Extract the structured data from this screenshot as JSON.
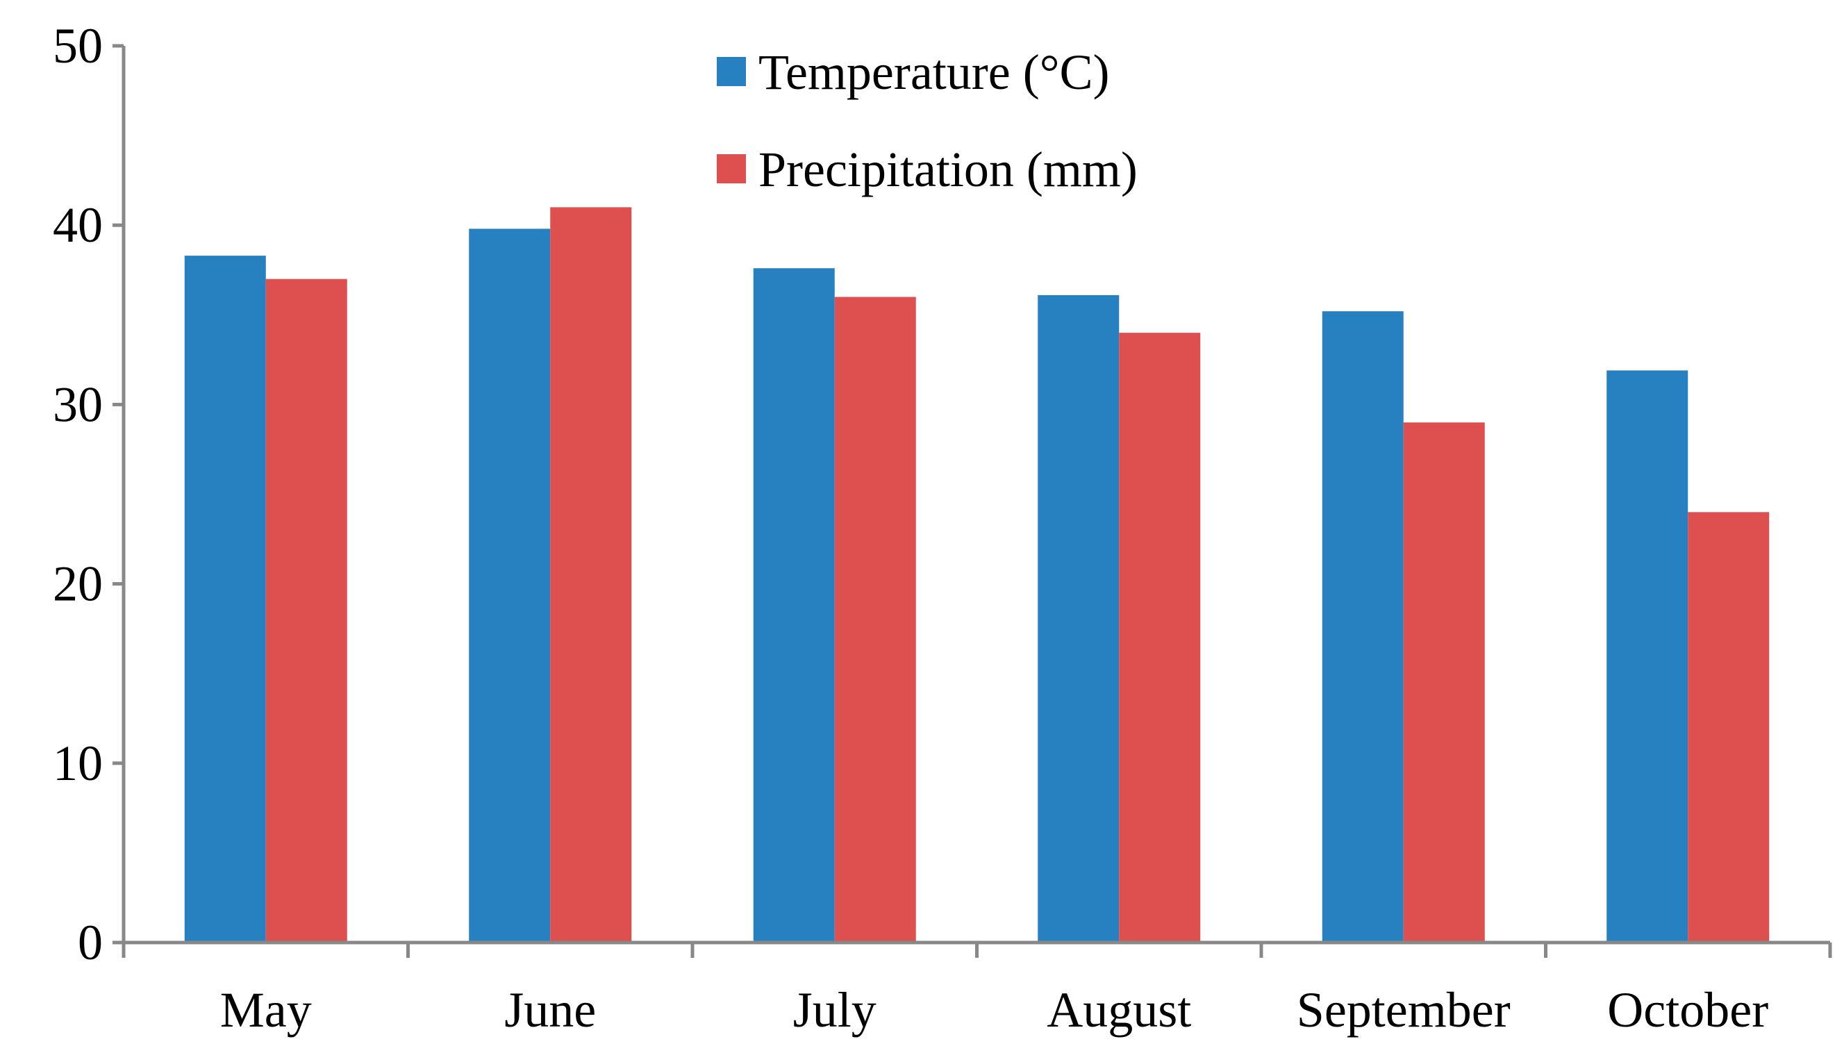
{
  "chart_data": {
    "type": "bar",
    "title": "",
    "xlabel": "",
    "ylabel": "",
    "ylim": [
      0,
      50
    ],
    "yticks": [
      0,
      10,
      20,
      30,
      40,
      50
    ],
    "yticks_text": [
      "0",
      "10",
      "20",
      "30",
      "40",
      "50"
    ],
    "grid": false,
    "legend_position": "top-center",
    "categories": [
      "May",
      "June",
      "July",
      "August",
      "September",
      "October"
    ],
    "series": [
      {
        "name": "Temperature (°C)",
        "color": "#2781C1",
        "values": [
          38.3,
          39.8,
          37.6,
          36.1,
          35.2,
          31.9
        ]
      },
      {
        "name": "Precipitation (mm)",
        "color": "#DE4F4F",
        "values": [
          37,
          41,
          36,
          34,
          29,
          24
        ]
      }
    ]
  }
}
